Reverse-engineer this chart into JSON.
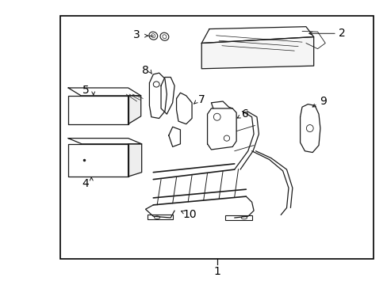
{
  "background_color": "#ffffff",
  "border_color": "#000000",
  "line_color": "#1a1a1a",
  "text_color": "#000000",
  "fig_width": 4.89,
  "fig_height": 3.6,
  "dpi": 100,
  "border": [
    0.155,
    0.09,
    0.965,
    0.945
  ]
}
